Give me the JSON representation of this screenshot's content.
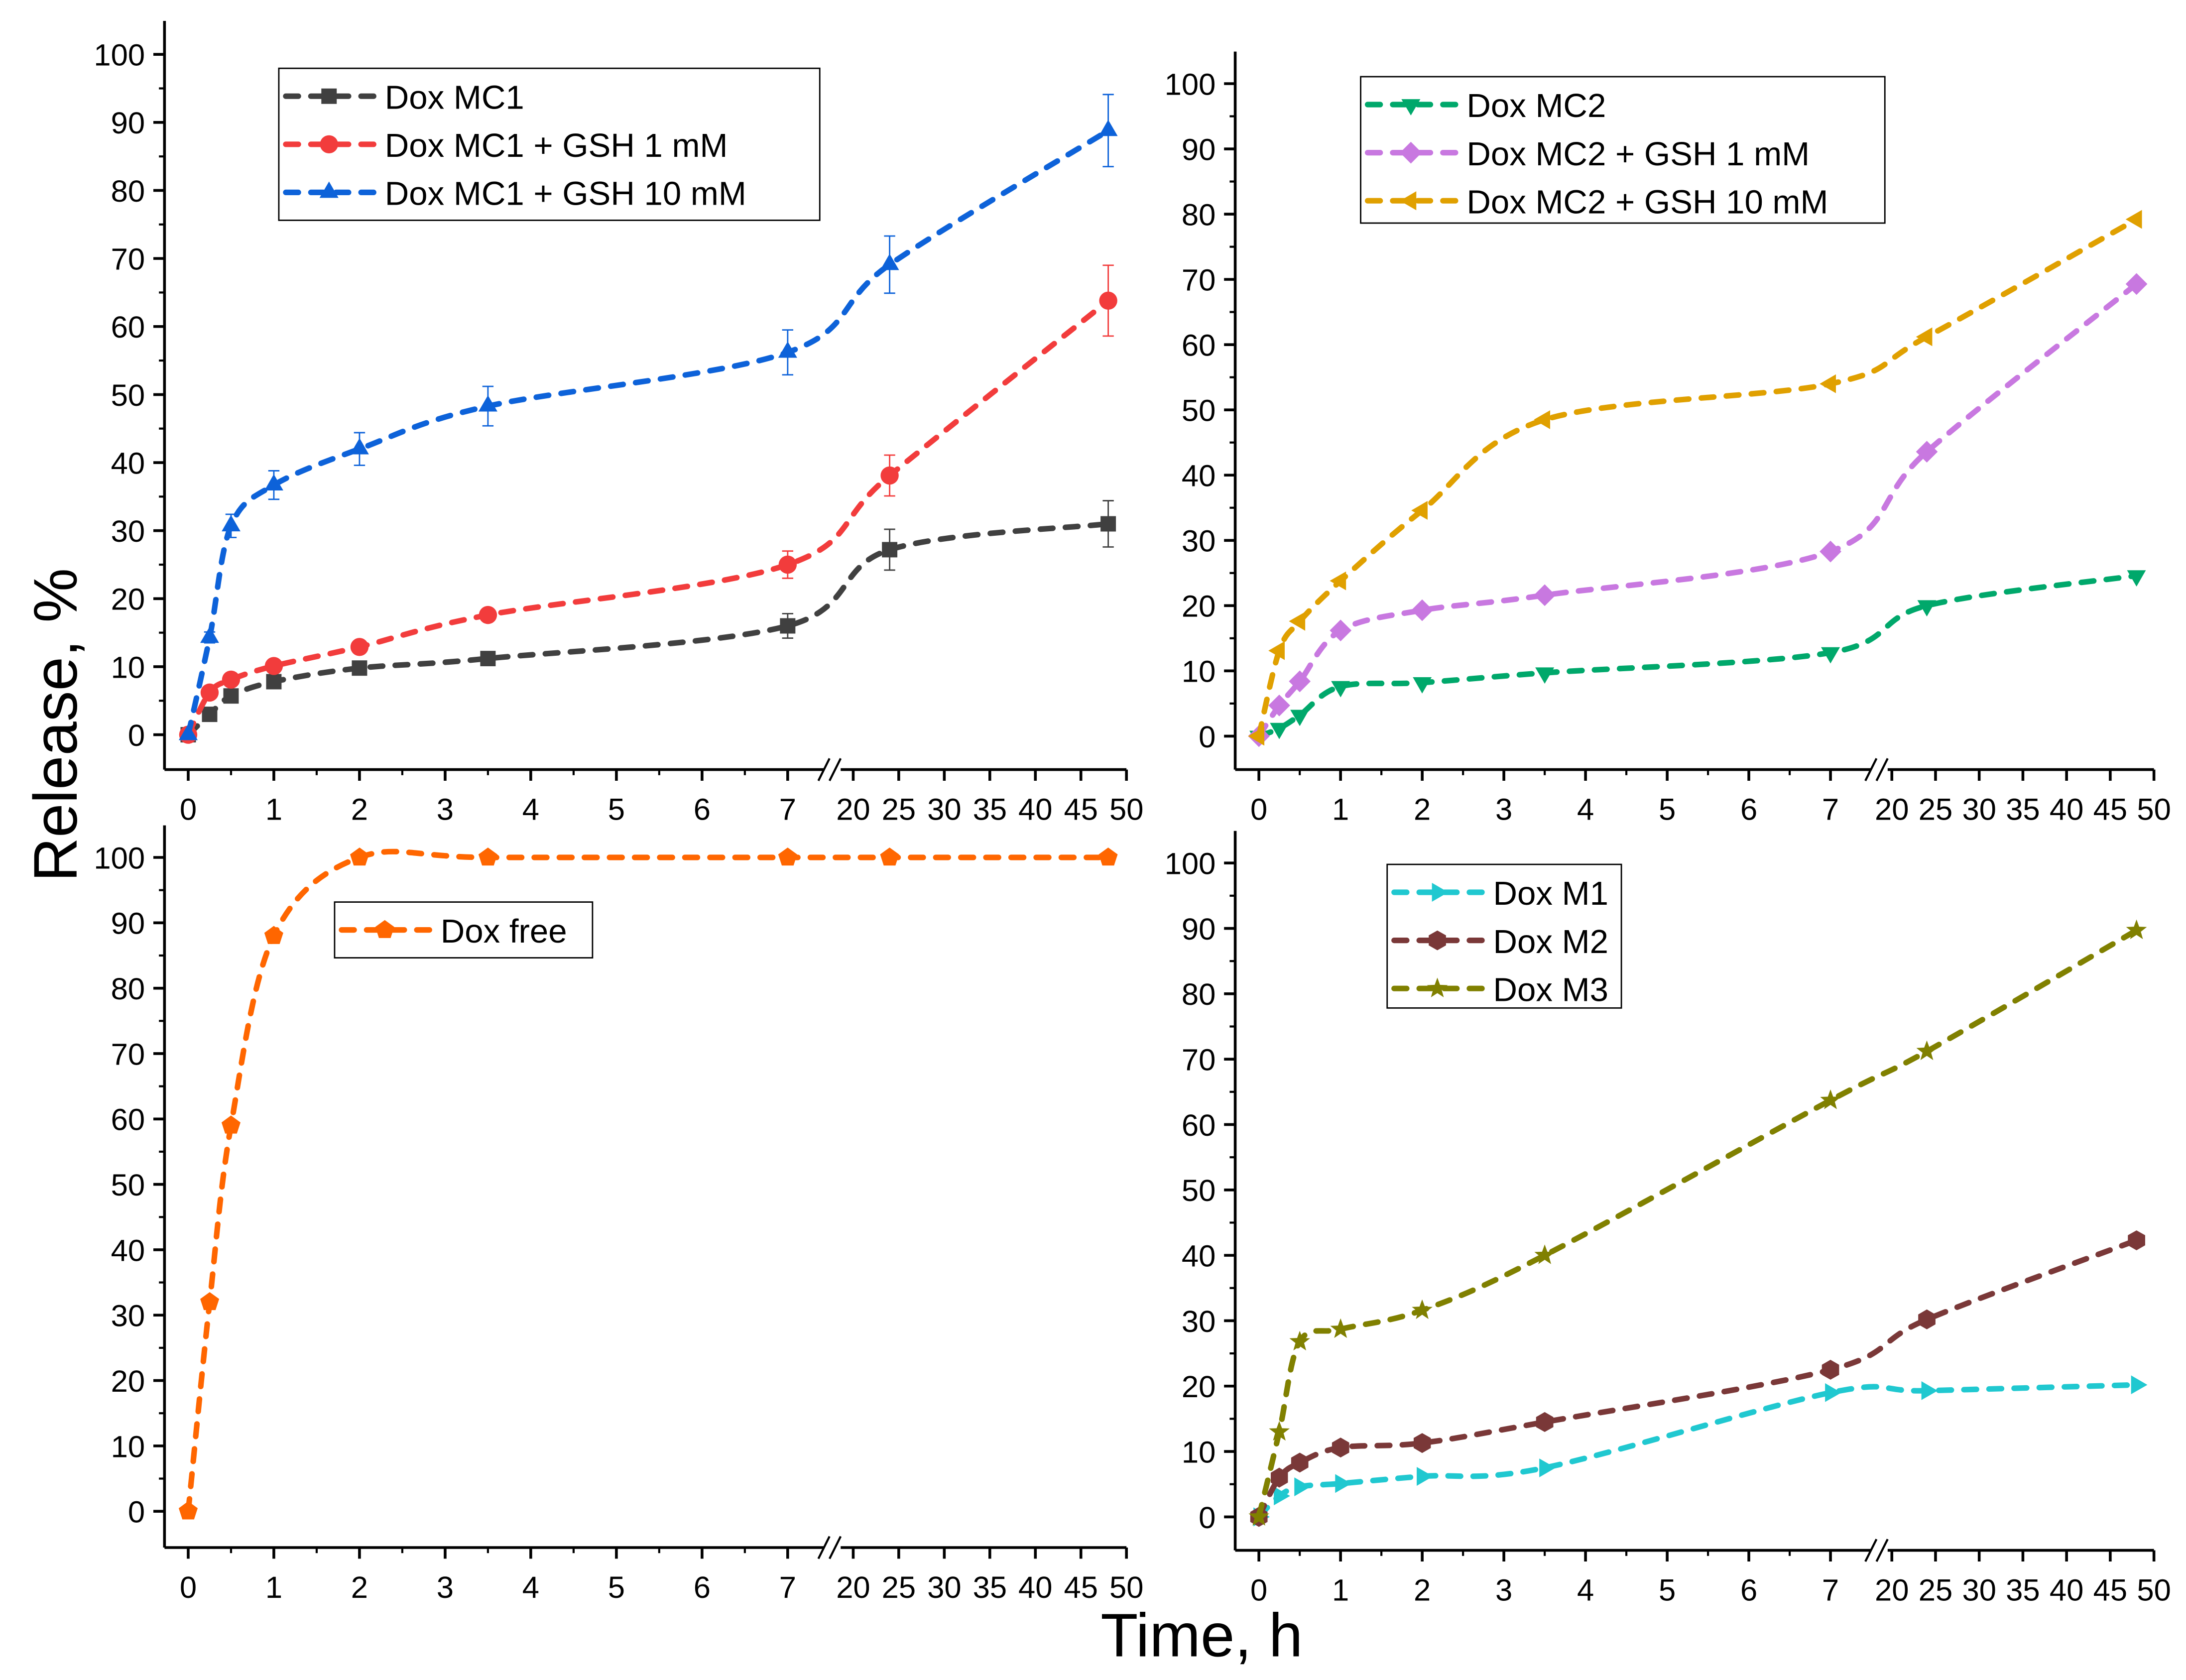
{
  "chart_data": {
    "type": "line",
    "ylabel": "Release, %",
    "xlabel": "Time, h",
    "x": [
      0,
      0.25,
      0.5,
      1,
      2,
      3.5,
      7,
      24,
      48
    ],
    "x_ticks_left": [
      0,
      1,
      2,
      3,
      4,
      5,
      6,
      7
    ],
    "x_ticks_right": [
      20,
      25,
      30,
      35,
      40,
      45,
      50
    ],
    "x_break": [
      7,
      20
    ],
    "y_ticks": [
      0,
      10,
      20,
      30,
      40,
      50,
      60,
      70,
      80,
      90,
      100
    ],
    "ylim": [
      0,
      100
    ],
    "xlim": [
      0,
      50
    ],
    "panels": [
      {
        "series": [
          {
            "name": "Dox MC1",
            "color": "#404040",
            "marker": "square",
            "values": [
              0,
              3,
              5.7,
              7.8,
              9.8,
              11.2,
              16,
              27.2,
              31
            ],
            "errors": [
              0,
              0.5,
              0.5,
              0.8,
              0.8,
              0.8,
              1.8,
              3,
              3.4
            ]
          },
          {
            "name": "Dox MC1 + GSH 1 mM",
            "color": "#f23c3c",
            "marker": "circle",
            "values": [
              0,
              6.2,
              8.1,
              10.1,
              12.9,
              17.6,
              25,
              38.1,
              63.8
            ],
            "errors": [
              0,
              0.5,
              0.5,
              0.8,
              0.8,
              0.8,
              2,
              3,
              5.2
            ]
          },
          {
            "name": "Dox MC1 + GSH 10 mM",
            "color": "#0d62d9",
            "marker": "triangle-up",
            "values": [
              0,
              14.3,
              30.7,
              36.7,
              42,
              48.3,
              56.2,
              69.1,
              88.8
            ],
            "errors": [
              0,
              0.8,
              1.7,
              2.1,
              2.4,
              2.9,
              3.3,
              4.2,
              5.3
            ]
          }
        ]
      },
      {
        "series": [
          {
            "name": "Dox MC2",
            "color": "#00a86b",
            "marker": "triangle-down",
            "values": [
              0,
              1.2,
              3.2,
              7.6,
              8.2,
              9.7,
              12.8,
              20,
              24.6
            ]
          },
          {
            "name": "Dox MC2 + GSH 1 mM",
            "color": "#c878e0",
            "marker": "diamond",
            "values": [
              0,
              4.7,
              8.4,
              16.2,
              19.3,
              21.6,
              28.3,
              43.6,
              69.3
            ]
          },
          {
            "name": "Dox MC2 + GSH 10 mM",
            "color": "#e0a000",
            "marker": "triangle-left",
            "values": [
              0,
              13.1,
              17.6,
              23.8,
              34.6,
              48.5,
              54,
              61.2,
              79.2
            ]
          }
        ]
      },
      {
        "series": [
          {
            "name": "Dox free",
            "color": "#ff6600",
            "marker": "pentagon",
            "values": [
              0,
              32,
              59,
              88,
              100,
              100,
              100,
              100,
              100
            ]
          }
        ]
      },
      {
        "series": [
          {
            "name": "Dox M1",
            "color": "#20c8d0",
            "marker": "triangle-right",
            "values": [
              0,
              3.2,
              4.6,
              5.1,
              6.2,
              7.5,
              19,
              19.3,
              20.2
            ]
          },
          {
            "name": "Dox M2",
            "color": "#7a3838",
            "marker": "hexagon",
            "values": [
              0,
              6,
              8.3,
              10.6,
              11.3,
              14.5,
              22.5,
              30.2,
              42.3
            ]
          },
          {
            "name": "Dox M3",
            "color": "#808000",
            "marker": "star",
            "values": [
              0,
              13,
              26.8,
              28.7,
              31.6,
              40,
              63.7,
              71.2,
              89.7
            ]
          }
        ]
      }
    ]
  }
}
